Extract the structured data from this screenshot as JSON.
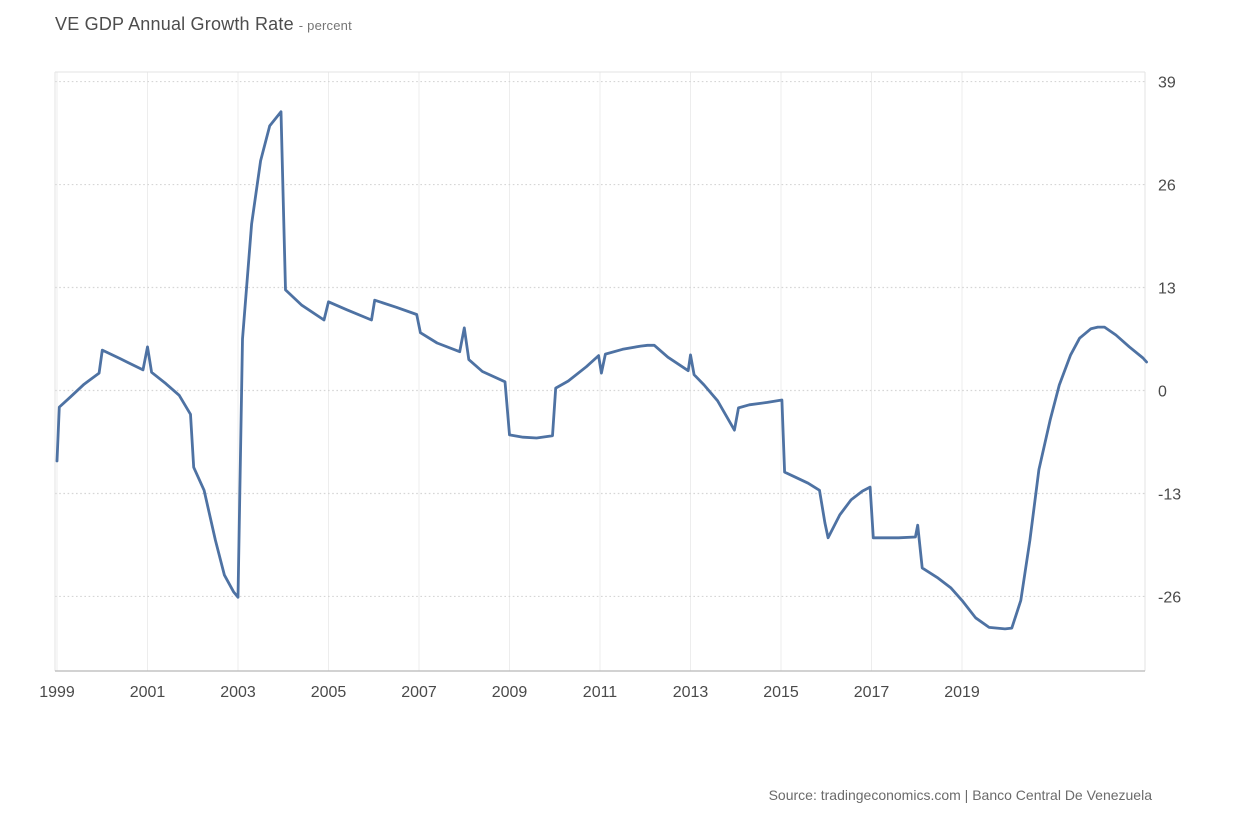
{
  "title": {
    "main": "VE GDP Annual Growth Rate",
    "unit": "- percent"
  },
  "source": "Source: tradingeconomics.com | Banco Central De Venezuela",
  "colors": {
    "line": "#4e72a3",
    "h_grid": "#d6d6d6",
    "v_grid": "#ededed",
    "border": "#e3e3e3",
    "x_axis": "#b8b8b8",
    "tick_text": "#4a4a4a"
  },
  "chart_data": {
    "type": "line",
    "title": "VE GDP Annual Growth Rate",
    "ylabel": "percent",
    "xlabel": "",
    "legend_position": "none",
    "grid": {
      "horizontal": "dotted",
      "vertical": "solid"
    },
    "x_tick_labels": [
      "1999",
      "2001",
      "2003",
      "2005",
      "2007",
      "2009",
      "2011",
      "2013",
      "2015",
      "2017",
      "2019"
    ],
    "y_ticks": [
      39,
      26,
      13,
      0,
      -13,
      -26
    ],
    "ylim": [
      -35.5,
      40.2
    ],
    "xlim_years": [
      1999.0,
      2023.1
    ],
    "series": [
      {
        "name": "VE GDP Annual Growth Rate (percent, quarterly)",
        "points": [
          [
            1999.0,
            -8.9
          ],
          [
            1999.05,
            -2.1
          ],
          [
            1999.3,
            -0.8
          ],
          [
            1999.6,
            0.8
          ],
          [
            1999.93,
            2.2
          ],
          [
            2000.0,
            5.1
          ],
          [
            2000.4,
            4.0
          ],
          [
            2000.9,
            2.6
          ],
          [
            2001.0,
            5.5
          ],
          [
            2001.09,
            2.3
          ],
          [
            2001.4,
            0.9
          ],
          [
            2001.7,
            -0.6
          ],
          [
            2001.95,
            -3.0
          ],
          [
            2002.02,
            -9.7
          ],
          [
            2002.25,
            -12.6
          ],
          [
            2002.5,
            -18.9
          ],
          [
            2002.7,
            -23.3
          ],
          [
            2002.9,
            -25.4
          ],
          [
            2003.0,
            -26.1
          ],
          [
            2003.1,
            6.5
          ],
          [
            2003.3,
            21.0
          ],
          [
            2003.5,
            29.0
          ],
          [
            2003.7,
            33.4
          ],
          [
            2003.95,
            35.2
          ],
          [
            2004.05,
            12.7
          ],
          [
            2004.4,
            10.8
          ],
          [
            2004.9,
            8.9
          ],
          [
            2005.0,
            11.2
          ],
          [
            2005.4,
            10.2
          ],
          [
            2005.95,
            8.9
          ],
          [
            2006.02,
            11.4
          ],
          [
            2006.5,
            10.5
          ],
          [
            2006.95,
            9.6
          ],
          [
            2007.03,
            7.3
          ],
          [
            2007.4,
            6.0
          ],
          [
            2007.9,
            4.9
          ],
          [
            2008.0,
            7.9
          ],
          [
            2008.1,
            3.9
          ],
          [
            2008.4,
            2.4
          ],
          [
            2008.9,
            1.1
          ],
          [
            2009.0,
            -5.6
          ],
          [
            2009.3,
            -5.9
          ],
          [
            2009.6,
            -6.0
          ],
          [
            2009.95,
            -5.7
          ],
          [
            2010.02,
            0.3
          ],
          [
            2010.3,
            1.2
          ],
          [
            2010.7,
            3.0
          ],
          [
            2010.97,
            4.4
          ],
          [
            2011.03,
            2.2
          ],
          [
            2011.12,
            4.6
          ],
          [
            2011.5,
            5.2
          ],
          [
            2011.9,
            5.6
          ],
          [
            2012.05,
            5.7
          ],
          [
            2012.2,
            5.7
          ],
          [
            2012.5,
            4.2
          ],
          [
            2012.95,
            2.5
          ],
          [
            2013.0,
            4.5
          ],
          [
            2013.08,
            2.0
          ],
          [
            2013.3,
            0.7
          ],
          [
            2013.6,
            -1.3
          ],
          [
            2013.97,
            -5.0
          ],
          [
            2014.06,
            -2.2
          ],
          [
            2014.3,
            -1.8
          ],
          [
            2014.7,
            -1.5
          ],
          [
            2015.02,
            -1.2
          ],
          [
            2015.08,
            -10.3
          ],
          [
            2015.3,
            -10.9
          ],
          [
            2015.6,
            -11.7
          ],
          [
            2015.85,
            -12.6
          ],
          [
            2015.97,
            -16.7
          ],
          [
            2016.04,
            -18.6
          ],
          [
            2016.3,
            -15.7
          ],
          [
            2016.55,
            -13.8
          ],
          [
            2016.8,
            -12.7
          ],
          [
            2016.97,
            -12.2
          ],
          [
            2017.04,
            -18.6
          ],
          [
            2017.3,
            -18.6
          ],
          [
            2017.6,
            -18.6
          ],
          [
            2017.97,
            -18.5
          ],
          [
            2018.02,
            -17.0
          ],
          [
            2018.12,
            -22.4
          ],
          [
            2018.45,
            -23.6
          ],
          [
            2018.75,
            -24.9
          ],
          [
            2019.0,
            -26.5
          ],
          [
            2019.3,
            -28.7
          ],
          [
            2019.6,
            -29.9
          ],
          [
            2019.95,
            -30.1
          ],
          [
            2020.1,
            -30.0
          ],
          [
            2020.3,
            -26.5
          ],
          [
            2020.5,
            -18.9
          ],
          [
            2020.7,
            -10.0
          ],
          [
            2020.95,
            -3.7
          ],
          [
            2021.15,
            0.7
          ],
          [
            2021.4,
            4.5
          ],
          [
            2021.6,
            6.6
          ],
          [
            2021.85,
            7.8
          ],
          [
            2022.0,
            8.0
          ],
          [
            2022.15,
            8.0
          ],
          [
            2022.4,
            7.0
          ],
          [
            2022.7,
            5.5
          ],
          [
            2023.0,
            4.1
          ],
          [
            2023.08,
            3.6
          ]
        ]
      }
    ]
  }
}
